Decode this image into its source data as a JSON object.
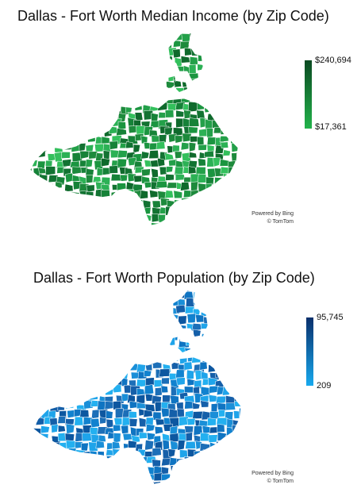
{
  "maps": [
    {
      "title": "Dallas - Fort Worth Median Income (by Zip Code)",
      "legend": {
        "max_label": "$240,694",
        "min_label": "$17,361",
        "max_color": "#0b4a22",
        "min_color": "#22b24a"
      },
      "attribution": {
        "line1": "Powered by Bing",
        "line2": "© TomTom"
      },
      "palette": [
        "#1d8a3c",
        "#23a049",
        "#2cb155",
        "#168238",
        "#127332",
        "#0f6a2c",
        "#33c05c",
        "#1b9540"
      ],
      "border_color": "#ffffff"
    },
    {
      "title": "Dallas - Fort Worth Population (by Zip Code)",
      "legend": {
        "max_label": "95,745",
        "min_label": "209",
        "max_color": "#0a2f6b",
        "min_color": "#17a9ee"
      },
      "attribution": {
        "line1": "Powered by Bing",
        "line2": "© TomTom"
      },
      "palette": [
        "#1a8fd8",
        "#1fa4ea",
        "#0f74c2",
        "#1c6fb8",
        "#0d57a0",
        "#23b0f0",
        "#155fa9",
        "#1182cf"
      ],
      "border_color": "#ffffff"
    }
  ]
}
